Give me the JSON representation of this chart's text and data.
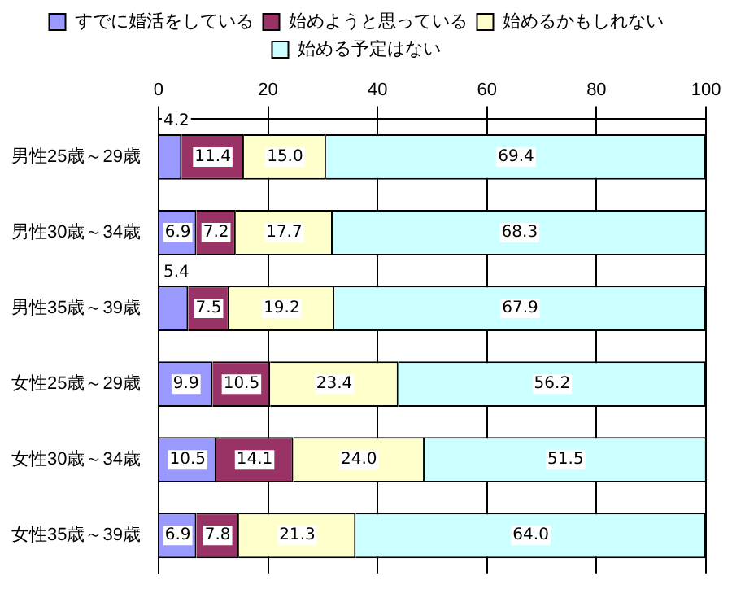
{
  "chart_data": {
    "type": "bar",
    "orientation": "horizontal",
    "stacked": true,
    "categories": [
      "男性25歳～29歳",
      "男性30歳～34歳",
      "男性35歳～39歳",
      "女性25歳～29歳",
      "女性30歳～34歳",
      "女性35歳～39歳"
    ],
    "series": [
      {
        "name": "すでに婚活をしている",
        "color": "#9999ff",
        "values": [
          4.2,
          6.9,
          5.4,
          9.9,
          10.5,
          6.9
        ],
        "value_labels": [
          "4.2",
          "6.9",
          "5.4",
          "9.9",
          "10.5",
          "6.9"
        ]
      },
      {
        "name": "始めようと思っている",
        "color": "#993366",
        "values": [
          11.4,
          7.2,
          7.5,
          10.5,
          14.1,
          7.8
        ],
        "value_labels": [
          "11.4",
          "7.2",
          "7.5",
          "10.5",
          "14.1",
          "7.8"
        ]
      },
      {
        "name": "始めるかもしれない",
        "color": "#ffffcc",
        "values": [
          15.0,
          17.7,
          19.2,
          23.4,
          24.0,
          21.3
        ],
        "value_labels": [
          "15.0",
          "17.7",
          "19.2",
          "23.4",
          "24.0",
          "21.3"
        ]
      },
      {
        "name": "始める予定はない",
        "color": "#ccffff",
        "values": [
          69.4,
          68.3,
          67.9,
          56.2,
          51.5,
          64.0
        ],
        "value_labels": [
          "69.4",
          "68.3",
          "67.9",
          "56.2",
          "51.5",
          "64.0"
        ]
      }
    ],
    "xlim": [
      0,
      100
    ],
    "xticks": [
      0,
      20,
      40,
      60,
      80,
      100
    ],
    "grid": "x",
    "legend": "top"
  }
}
